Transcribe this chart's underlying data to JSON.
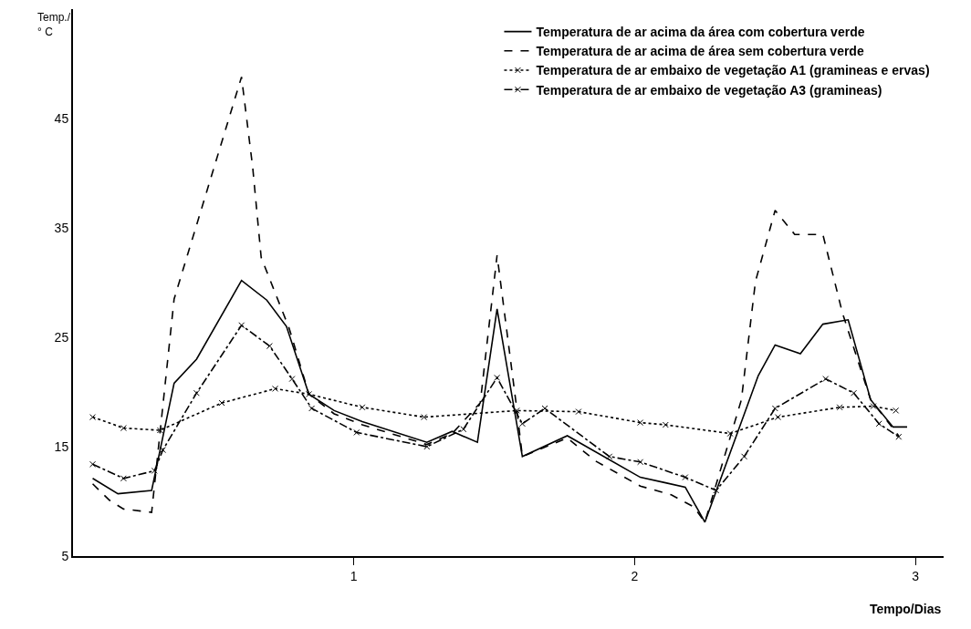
{
  "chart_data": {
    "type": "line",
    "xlabel": "Tempo/Dias",
    "ylabel": "Temp./\n° C",
    "xlim": [
      0,
      3.1
    ],
    "xticks": [
      1,
      2,
      3
    ],
    "ylim": [
      5,
      55
    ],
    "yticks": [
      5,
      15,
      25,
      35,
      45
    ],
    "legend": "top right",
    "series": [
      {
        "name": "Temperatura de ar acima da área com cobertura verde",
        "color": "#000000",
        "line_style": "solid",
        "marker": "none",
        "x": [
          0.07,
          0.16,
          0.28,
          0.36,
          0.44,
          0.6,
          0.69,
          0.76,
          0.84,
          0.93,
          1.03,
          1.26,
          1.35,
          1.44,
          1.51,
          1.6,
          1.76,
          2.02,
          2.11,
          2.18,
          2.25,
          2.44,
          2.5,
          2.59,
          2.67,
          2.76,
          2.84,
          2.92,
          2.97
        ],
        "values": [
          12.1,
          10.7,
          11.0,
          20.8,
          23.0,
          30.2,
          28.4,
          26.0,
          19.8,
          18.3,
          17.3,
          15.4,
          16.4,
          15.4,
          27.6,
          14.1,
          16.0,
          12.2,
          11.7,
          11.3,
          8.1,
          21.5,
          24.3,
          23.5,
          26.2,
          26.6,
          19.3,
          16.8,
          16.8
        ]
      },
      {
        "name": "Temperatura de ar acima de área sem cobertura verde",
        "color": "#000000",
        "line_style": "dashed",
        "marker": "none",
        "x": [
          0.07,
          0.13,
          0.18,
          0.28,
          0.36,
          0.6,
          0.64,
          0.67,
          0.77,
          0.84,
          0.93,
          1.03,
          1.26,
          1.35,
          1.45,
          1.51,
          1.58,
          1.6,
          1.76,
          1.86,
          2.02,
          2.13,
          2.21,
          2.25,
          2.38,
          2.43,
          2.5,
          2.57,
          2.67,
          2.74,
          2.84,
          2.94
        ],
        "values": [
          11.6,
          10.1,
          9.3,
          9.0,
          28.5,
          48.8,
          40.5,
          32.3,
          25.8,
          19.8,
          18.0,
          17.0,
          15.2,
          16.2,
          19.0,
          32.5,
          18.5,
          14.1,
          15.8,
          13.7,
          11.4,
          10.6,
          9.5,
          8.1,
          19.3,
          30.1,
          36.6,
          34.4,
          34.4,
          27.2,
          19.3,
          16.0
        ]
      },
      {
        "name": "Temperatura de ar embaixo de vegetação A1 (gramineas e ervas)",
        "color": "#000000",
        "line_style": "dotted",
        "marker": "cross",
        "x": [
          0.07,
          0.18,
          0.31,
          0.53,
          0.72,
          0.84,
          1.03,
          1.25,
          1.58,
          1.8,
          2.02,
          2.11,
          2.34,
          2.51,
          2.73,
          2.85,
          2.93
        ],
        "values": [
          17.7,
          16.7,
          16.5,
          19.0,
          20.3,
          19.8,
          18.6,
          17.7,
          18.3,
          18.2,
          17.2,
          17.0,
          16.2,
          17.7,
          18.6,
          18.7,
          18.3
        ]
      },
      {
        "name": "Temperatura de ar embaixo de vegetação A3 (gramineas)",
        "color": "#000000",
        "line_style": "dashdot",
        "marker": "cross",
        "x": [
          0.07,
          0.18,
          0.29,
          0.32,
          0.44,
          0.6,
          0.7,
          0.78,
          0.85,
          1.01,
          1.26,
          1.39,
          1.51,
          1.6,
          1.68,
          1.91,
          2.02,
          2.18,
          2.29,
          2.39,
          2.5,
          2.68,
          2.78,
          2.87,
          2.94
        ],
        "values": [
          13.4,
          12.1,
          12.8,
          14.7,
          19.9,
          26.1,
          24.2,
          21.2,
          18.5,
          16.3,
          15.0,
          16.6,
          21.3,
          17.1,
          18.5,
          14.1,
          13.6,
          12.2,
          11.0,
          14.1,
          18.5,
          21.2,
          19.9,
          17.1,
          15.9
        ]
      }
    ]
  }
}
